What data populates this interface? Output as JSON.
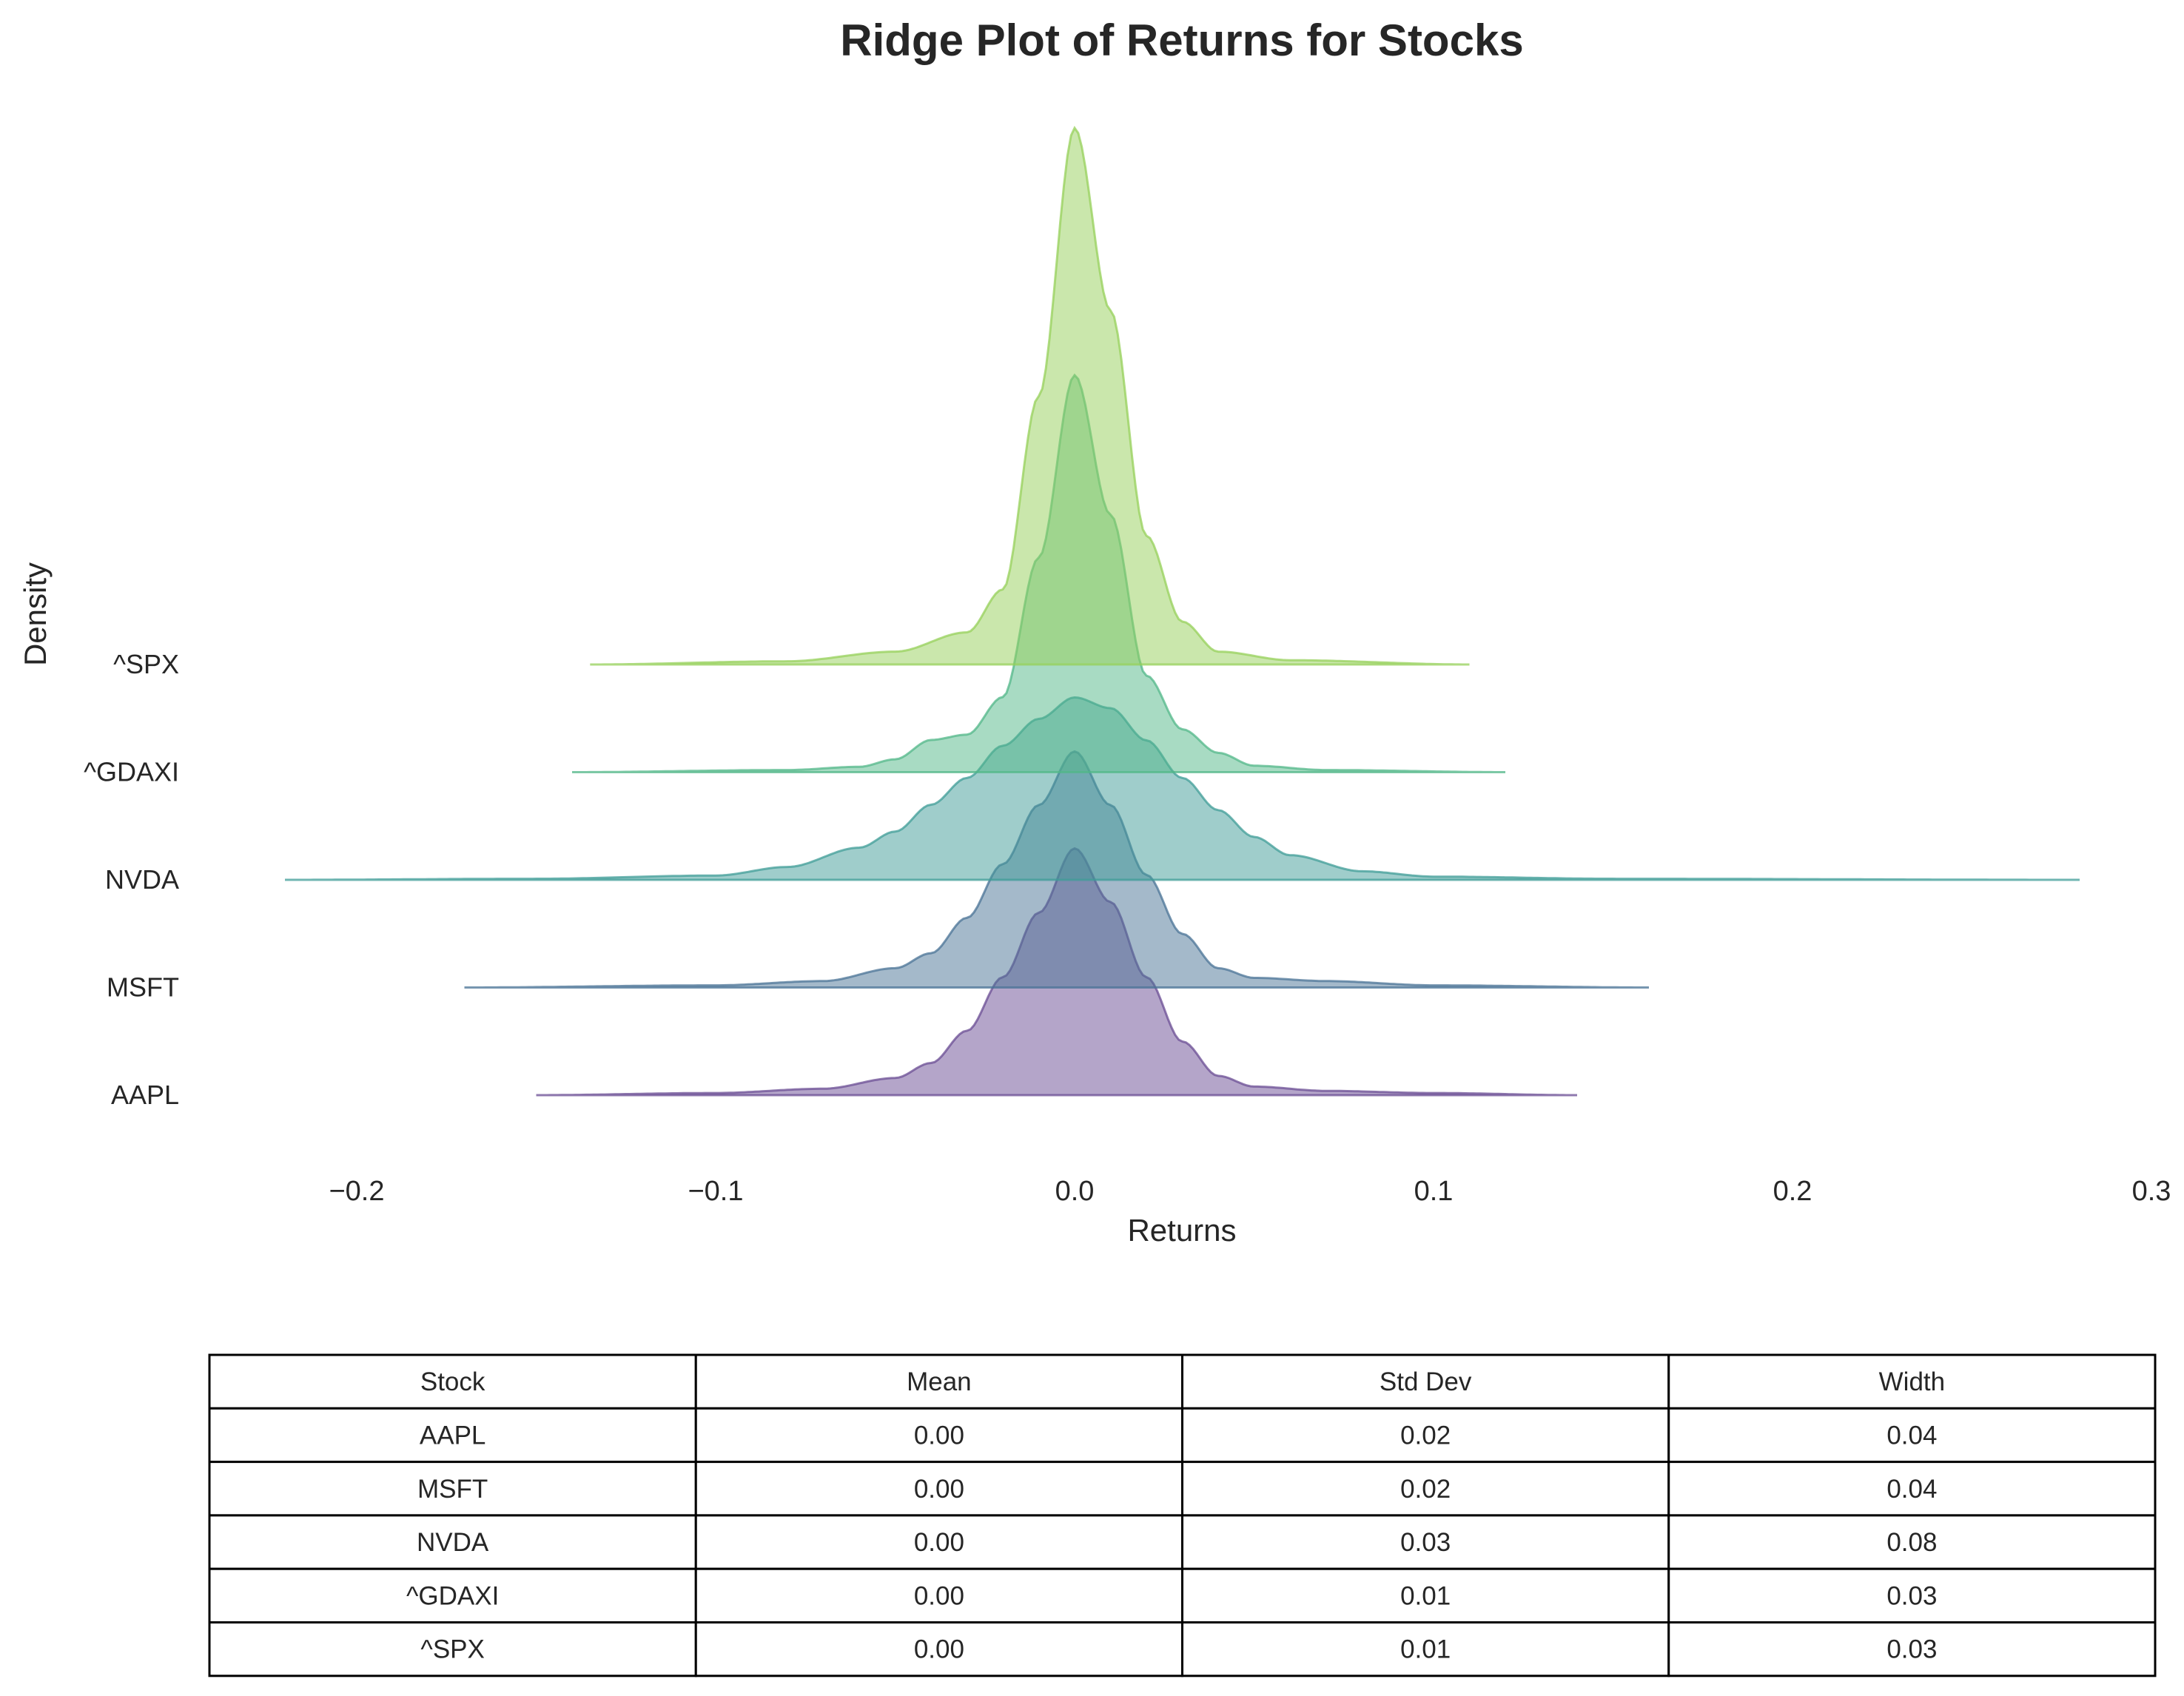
{
  "chart_data": {
    "type": "ridge",
    "title": "Ridge Plot of Returns for Stocks",
    "xlabel": "Returns",
    "ylabel": "Density",
    "xlim": [
      -0.22,
      0.3
    ],
    "xticks": [
      -0.2,
      -0.1,
      0.0,
      0.1,
      0.2,
      0.3
    ],
    "xtick_labels": [
      "−0.2",
      "−0.1",
      "0.0",
      "0.1",
      "0.2",
      "0.3"
    ],
    "grid": false,
    "series": [
      {
        "name": "AAPL",
        "range": [
          -0.15,
          0.14
        ],
        "peak_density": 23,
        "color": "#6a4c93",
        "points": [
          [
            -0.15,
            0
          ],
          [
            -0.1,
            0.2
          ],
          [
            -0.07,
            0.6
          ],
          [
            -0.05,
            1.6
          ],
          [
            -0.04,
            3
          ],
          [
            -0.03,
            6
          ],
          [
            -0.02,
            11
          ],
          [
            -0.01,
            17
          ],
          [
            0,
            23
          ],
          [
            0.01,
            18
          ],
          [
            0.02,
            11
          ],
          [
            0.03,
            5
          ],
          [
            0.04,
            1.8
          ],
          [
            0.05,
            0.8
          ],
          [
            0.07,
            0.4
          ],
          [
            0.1,
            0.2
          ],
          [
            0.14,
            0
          ]
        ]
      },
      {
        "name": "MSFT",
        "range": [
          -0.17,
          0.16
        ],
        "peak_density": 22,
        "color": "#4a7396",
        "points": [
          [
            -0.17,
            0
          ],
          [
            -0.1,
            0.2
          ],
          [
            -0.07,
            0.6
          ],
          [
            -0.05,
            1.8
          ],
          [
            -0.04,
            3.2
          ],
          [
            -0.03,
            6.5
          ],
          [
            -0.02,
            11.5
          ],
          [
            -0.01,
            17
          ],
          [
            0,
            22
          ],
          [
            0.01,
            17
          ],
          [
            0.02,
            10.5
          ],
          [
            0.03,
            5
          ],
          [
            0.04,
            1.8
          ],
          [
            0.05,
            0.9
          ],
          [
            0.07,
            0.6
          ],
          [
            0.1,
            0.2
          ],
          [
            0.16,
            0
          ]
        ]
      },
      {
        "name": "NVDA",
        "range": [
          -0.22,
          0.28
        ],
        "peak_density": 17,
        "color": "#3f9c97",
        "points": [
          [
            -0.22,
            0
          ],
          [
            -0.15,
            0.1
          ],
          [
            -0.1,
            0.4
          ],
          [
            -0.08,
            1.2
          ],
          [
            -0.06,
            3
          ],
          [
            -0.05,
            4.5
          ],
          [
            -0.04,
            7
          ],
          [
            -0.03,
            9.5
          ],
          [
            -0.02,
            12.5
          ],
          [
            -0.01,
            15
          ],
          [
            0,
            17
          ],
          [
            0.01,
            16
          ],
          [
            0.02,
            13
          ],
          [
            0.03,
            9.5
          ],
          [
            0.04,
            6.5
          ],
          [
            0.05,
            4
          ],
          [
            0.06,
            2.3
          ],
          [
            0.08,
            0.8
          ],
          [
            0.1,
            0.3
          ],
          [
            0.15,
            0.1
          ],
          [
            0.28,
            0
          ]
        ]
      },
      {
        "name": "^GDAXI",
        "range": [
          -0.14,
          0.12
        ],
        "peak_density": 37,
        "color": "#52b788",
        "points": [
          [
            -0.14,
            0
          ],
          [
            -0.08,
            0.2
          ],
          [
            -0.06,
            0.5
          ],
          [
            -0.05,
            1.2
          ],
          [
            -0.04,
            3
          ],
          [
            -0.03,
            3.5
          ],
          [
            -0.02,
            7
          ],
          [
            -0.01,
            20
          ],
          [
            0,
            37
          ],
          [
            0.01,
            24
          ],
          [
            0.02,
            9
          ],
          [
            0.03,
            4
          ],
          [
            0.04,
            1.8
          ],
          [
            0.05,
            0.6
          ],
          [
            0.07,
            0.2
          ],
          [
            0.12,
            0
          ]
        ]
      },
      {
        "name": "^SPX",
        "range": [
          -0.135,
          0.11
        ],
        "peak_density": 50,
        "color": "#95d05a",
        "points": [
          [
            -0.135,
            0
          ],
          [
            -0.08,
            0.3
          ],
          [
            -0.05,
            1.2
          ],
          [
            -0.03,
            3
          ],
          [
            -0.02,
            7
          ],
          [
            -0.01,
            25
          ],
          [
            0,
            50
          ],
          [
            0.01,
            33
          ],
          [
            0.02,
            12
          ],
          [
            0.03,
            4
          ],
          [
            0.04,
            1.2
          ],
          [
            0.06,
            0.4
          ],
          [
            0.11,
            0
          ]
        ]
      }
    ],
    "table": {
      "headers": [
        "Stock",
        "Mean",
        "Std Dev",
        "Width"
      ],
      "rows": [
        [
          "AAPL",
          "0.00",
          "0.02",
          "0.04"
        ],
        [
          "MSFT",
          "0.00",
          "0.02",
          "0.04"
        ],
        [
          "NVDA",
          "0.00",
          "0.03",
          "0.08"
        ],
        [
          "^GDAXI",
          "0.00",
          "0.01",
          "0.03"
        ],
        [
          "^SPX",
          "0.00",
          "0.01",
          "0.03"
        ]
      ]
    }
  }
}
